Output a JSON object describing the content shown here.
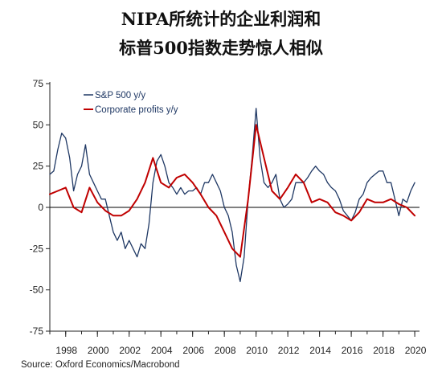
{
  "title_line1": "NIPA所统计的企业利润和",
  "title_line2": "标普500指数走势惊人相似",
  "source": "Source: Oxford Economics/Macrobond",
  "colors": {
    "sp500": "#1f3864",
    "profits": "#c00000",
    "axis": "#222222"
  },
  "chart_data": {
    "type": "line",
    "title": "NIPA所统计的企业利润和 标普500指数走势惊人相似",
    "xlabel": "",
    "ylabel": "",
    "xlim": [
      1997.0,
      2020.3
    ],
    "ylim": [
      -75,
      75
    ],
    "x_ticks": [
      1998,
      2000,
      2002,
      2004,
      2006,
      2008,
      2010,
      2012,
      2014,
      2016,
      2018,
      2020
    ],
    "x_tick_labels": [
      "1998",
      "2000",
      "2002",
      "2004",
      "2006",
      "2008",
      "2010",
      "2012",
      "2014",
      "2016",
      "2018",
      "2020"
    ],
    "y_ticks": [
      75,
      50,
      25,
      0,
      -25,
      -50,
      -75
    ],
    "y_tick_labels": [
      "75",
      "50",
      "25",
      "0",
      "-25",
      "-50",
      "-75"
    ],
    "legend_position": "top-left",
    "grid": false,
    "series": [
      {
        "name": "S&P 500 y/y",
        "style": "line",
        "x": [
          1997.0,
          1997.25,
          1997.5,
          1997.75,
          1998.0,
          1998.25,
          1998.5,
          1998.75,
          1999.0,
          1999.25,
          1999.5,
          1999.75,
          2000.0,
          2000.25,
          2000.5,
          2000.75,
          2001.0,
          2001.25,
          2001.5,
          2001.75,
          2002.0,
          2002.25,
          2002.5,
          2002.75,
          2003.0,
          2003.25,
          2003.5,
          2003.75,
          2004.0,
          2004.25,
          2004.5,
          2004.75,
          2005.0,
          2005.25,
          2005.5,
          2005.75,
          2006.0,
          2006.25,
          2006.5,
          2006.75,
          2007.0,
          2007.25,
          2007.5,
          2007.75,
          2008.0,
          2008.25,
          2008.5,
          2008.75,
          2009.0,
          2009.25,
          2009.5,
          2009.75,
          2010.0,
          2010.25,
          2010.5,
          2010.75,
          2011.0,
          2011.25,
          2011.5,
          2011.75,
          2012.0,
          2012.25,
          2012.5,
          2012.75,
          2013.0,
          2013.25,
          2013.5,
          2013.75,
          2014.0,
          2014.25,
          2014.5,
          2014.75,
          2015.0,
          2015.25,
          2015.5,
          2015.75,
          2016.0,
          2016.25,
          2016.5,
          2016.75,
          2017.0,
          2017.25,
          2017.5,
          2017.75,
          2018.0,
          2018.25,
          2018.5,
          2018.75,
          2019.0,
          2019.25,
          2019.5,
          2019.75,
          2020.0
        ],
        "values": [
          20,
          22,
          35,
          45,
          42,
          30,
          10,
          20,
          25,
          38,
          20,
          15,
          10,
          5,
          5,
          -5,
          -15,
          -20,
          -15,
          -25,
          -20,
          -25,
          -30,
          -22,
          -25,
          -10,
          15,
          28,
          32,
          25,
          15,
          12,
          8,
          12,
          8,
          10,
          10,
          12,
          8,
          15,
          15,
          20,
          15,
          10,
          0,
          -5,
          -15,
          -35,
          -45,
          -30,
          5,
          30,
          60,
          30,
          15,
          12,
          15,
          20,
          5,
          0,
          2,
          5,
          15,
          15,
          15,
          18,
          22,
          25,
          22,
          20,
          15,
          12,
          10,
          5,
          -2,
          -5,
          -8,
          -3,
          5,
          8,
          15,
          18,
          20,
          22,
          22,
          15,
          15,
          5,
          -5,
          5,
          3,
          10,
          15
        ]
      },
      {
        "name": "Corporate profits y/y",
        "style": "line",
        "x": [
          1997.0,
          1997.5,
          1998.0,
          1998.5,
          1999.0,
          1999.5,
          2000.0,
          2000.5,
          2001.0,
          2001.5,
          2002.0,
          2002.5,
          2003.0,
          2003.5,
          2004.0,
          2004.5,
          2005.0,
          2005.5,
          2006.0,
          2006.5,
          2007.0,
          2007.5,
          2008.0,
          2008.5,
          2009.0,
          2009.5,
          2010.0,
          2010.5,
          2011.0,
          2011.5,
          2012.0,
          2012.5,
          2013.0,
          2013.5,
          2014.0,
          2014.5,
          2015.0,
          2015.5,
          2016.0,
          2016.5,
          2017.0,
          2017.5,
          2018.0,
          2018.5,
          2019.0,
          2019.5,
          2020.0
        ],
        "values": [
          8,
          10,
          12,
          0,
          -3,
          12,
          3,
          -2,
          -5,
          -5,
          -2,
          5,
          15,
          30,
          15,
          12,
          18,
          20,
          15,
          8,
          0,
          -5,
          -15,
          -25,
          -30,
          5,
          50,
          30,
          10,
          5,
          12,
          20,
          15,
          3,
          5,
          3,
          -3,
          -5,
          -8,
          -3,
          5,
          3,
          3,
          5,
          2,
          0,
          -5
        ]
      }
    ]
  }
}
